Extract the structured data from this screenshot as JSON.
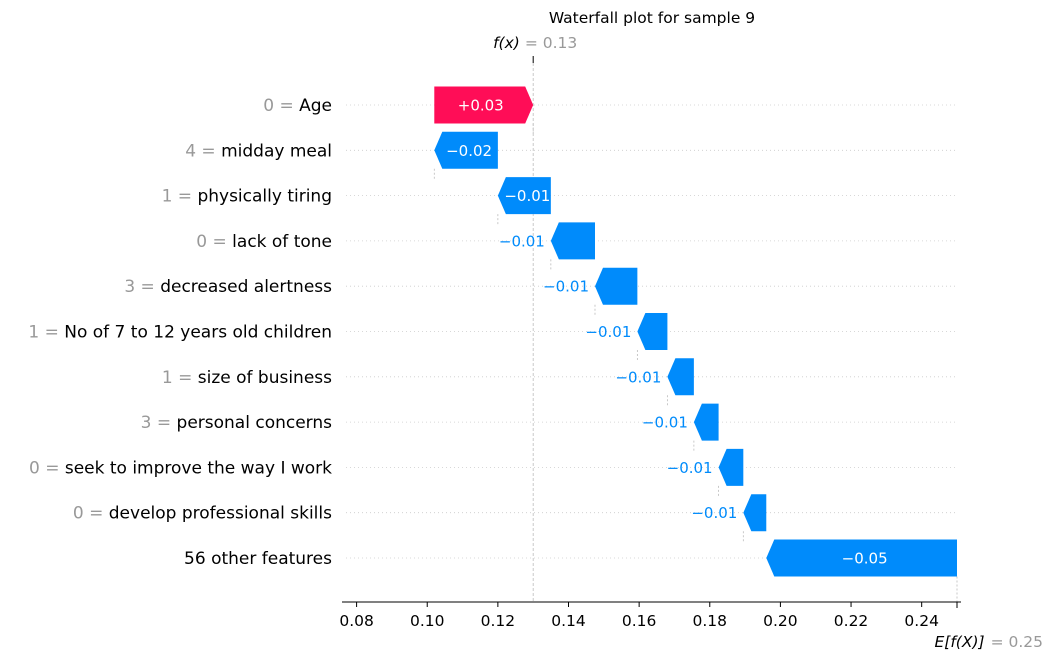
{
  "chart_data": {
    "type": "bar",
    "subtype": "waterfall",
    "title": "Waterfall plot for sample 9",
    "fx": {
      "label": "f(x)",
      "value": 0.13,
      "value_text": "= 0.13"
    },
    "base": {
      "label": "E[f(X)]",
      "value": 0.25,
      "value_text": "= 0.25"
    },
    "features": [
      {
        "value_text": "0",
        "name": "Age",
        "start": 0.102,
        "end": 0.13,
        "label": "+0.03",
        "label_inside": true
      },
      {
        "value_text": "4",
        "name": "midday meal",
        "start": 0.12,
        "end": 0.102,
        "label": "−0.02",
        "label_inside": true
      },
      {
        "value_text": "1",
        "name": "physically tiring",
        "start": 0.135,
        "end": 0.12,
        "label": "−0.01",
        "label_inside": true
      },
      {
        "value_text": "0",
        "name": "lack of tone",
        "start": 0.1475,
        "end": 0.135,
        "label": "−0.01",
        "label_inside": false
      },
      {
        "value_text": "3",
        "name": "decreased alertness",
        "start": 0.1595,
        "end": 0.1475,
        "label": "−0.01",
        "label_inside": false
      },
      {
        "value_text": "1",
        "name": "No of 7 to 12 years old children",
        "start": 0.168,
        "end": 0.1595,
        "label": "−0.01",
        "label_inside": false
      },
      {
        "value_text": "1",
        "name": "size of business",
        "start": 0.1755,
        "end": 0.168,
        "label": "−0.01",
        "label_inside": false
      },
      {
        "value_text": "3",
        "name": "personal concerns",
        "start": 0.1825,
        "end": 0.1755,
        "label": "−0.01",
        "label_inside": false
      },
      {
        "value_text": "0",
        "name": "seek to improve the way I work",
        "start": 0.1895,
        "end": 0.1825,
        "label": "−0.01",
        "label_inside": false
      },
      {
        "value_text": "0",
        "name": "develop professional skills",
        "start": 0.196,
        "end": 0.1895,
        "label": "−0.01",
        "label_inside": false
      },
      {
        "value_text": "",
        "name": "56 other features",
        "start": 0.25,
        "end": 0.196,
        "label": "−0.05",
        "label_inside": true
      }
    ],
    "xlim": [
      0.077,
      0.25
    ],
    "xticks": [
      0.08,
      0.1,
      0.12,
      0.14,
      0.16,
      0.18,
      0.2,
      0.22,
      0.24
    ],
    "xtick_labels": [
      "0.08",
      "0.10",
      "0.12",
      "0.14",
      "0.16",
      "0.18",
      "0.20",
      "0.22",
      "0.24"
    ],
    "colors": {
      "positive": "#ff0d57",
      "negative": "#008bfb",
      "muted_text": "#999999",
      "grid": "#cccccc"
    }
  }
}
